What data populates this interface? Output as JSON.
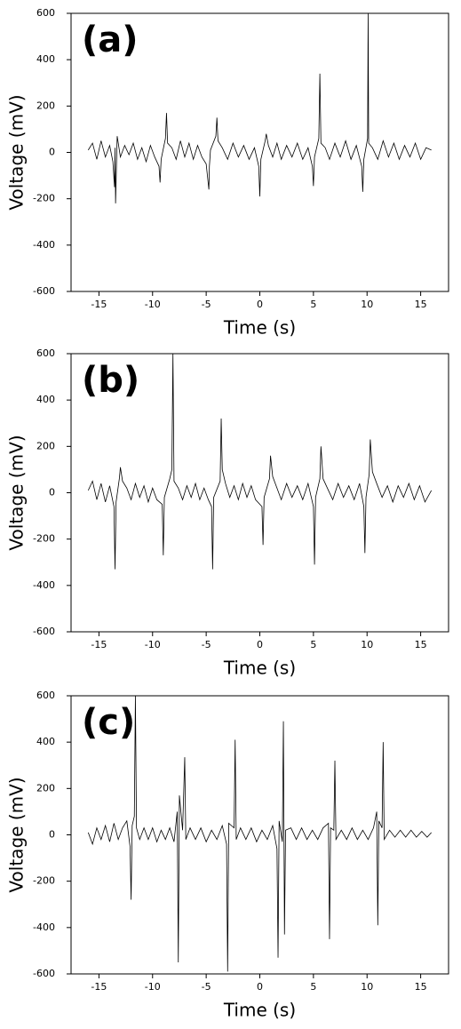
{
  "chart_data": [
    {
      "type": "line",
      "label": "(a)",
      "x_label": "Time (s)",
      "y_label": "Voltage (mV)",
      "x": [
        -16,
        -15.6,
        -15.2,
        -14.8,
        -14.4,
        -14.0,
        -13.7,
        -13.55,
        -13.5,
        -13.45,
        -13.3,
        -13.2,
        -13.0,
        -12.6,
        -12.2,
        -11.8,
        -11.4,
        -11.0,
        -10.6,
        -10.2,
        -9.8,
        -9.4,
        -9.3,
        -9.2,
        -8.8,
        -8.7,
        -8.6,
        -8.2,
        -7.8,
        -7.4,
        -7.0,
        -6.6,
        -6.2,
        -5.8,
        -5.4,
        -5.0,
        -4.75,
        -4.7,
        -4.6,
        -4.1,
        -4.0,
        -3.9,
        -3.5,
        -3.0,
        -2.5,
        -2.0,
        -1.5,
        -1.0,
        -0.5,
        -0.1,
        0.0,
        0.1,
        0.5,
        0.6,
        0.8,
        1.2,
        1.6,
        2.0,
        2.5,
        3.0,
        3.5,
        4.0,
        4.5,
        4.9,
        5.0,
        5.1,
        5.5,
        5.6,
        5.7,
        6.1,
        6.5,
        7.0,
        7.5,
        8.0,
        8.5,
        9.0,
        9.5,
        9.6,
        9.7,
        10.05,
        10.1,
        10.15,
        10.5,
        11.0,
        11.5,
        12.0,
        12.5,
        13.0,
        13.5,
        14.0,
        14.5,
        15.0,
        15.5,
        16.0
      ],
      "series": [
        {
          "color": "#000000",
          "values": [
            10,
            40,
            -30,
            50,
            -20,
            30,
            -40,
            -150,
            20,
            -220,
            70,
            40,
            -20,
            30,
            -10,
            40,
            -30,
            20,
            -40,
            30,
            -20,
            -60,
            -130,
            -30,
            60,
            170,
            40,
            20,
            -30,
            50,
            -20,
            40,
            -30,
            30,
            -20,
            -50,
            -160,
            -60,
            10,
            70,
            150,
            50,
            20,
            -30,
            40,
            -20,
            30,
            -30,
            20,
            -60,
            -190,
            -30,
            50,
            80,
            30,
            -20,
            40,
            -30,
            30,
            -20,
            40,
            -30,
            20,
            -60,
            -145,
            -20,
            60,
            340,
            40,
            20,
            -30,
            40,
            -20,
            50,
            -30,
            30,
            -60,
            -170,
            -30,
            60,
            600,
            40,
            20,
            -30,
            50,
            -20,
            40,
            -30,
            30,
            -20,
            40,
            -30,
            20,
            10
          ]
        }
      ],
      "xlim": [
        -17.6,
        17.6
      ],
      "ylim": [
        -600,
        600
      ],
      "xticks": [
        -15,
        -10,
        -5,
        0,
        5,
        10,
        15
      ],
      "yticks": [
        -600,
        -400,
        -200,
        0,
        200,
        400,
        600
      ]
    },
    {
      "type": "line",
      "label": "(b)",
      "x_label": "Time (s)",
      "y_label": "Voltage (mV)",
      "x": [
        -16,
        -15.6,
        -15.2,
        -14.8,
        -14.4,
        -14.0,
        -13.6,
        -13.5,
        -13.4,
        -13.1,
        -13.0,
        -12.8,
        -12.4,
        -12.0,
        -11.6,
        -11.2,
        -10.8,
        -10.4,
        -10.0,
        -9.6,
        -9.1,
        -9.0,
        -8.9,
        -8.4,
        -8.2,
        -8.1,
        -8.0,
        -7.6,
        -7.2,
        -6.8,
        -6.4,
        -6.0,
        -5.6,
        -5.2,
        -4.8,
        -4.5,
        -4.4,
        -4.3,
        -3.7,
        -3.6,
        -3.5,
        -3.2,
        -2.8,
        -2.4,
        -2.0,
        -1.6,
        -1.2,
        -0.8,
        -0.4,
        0.2,
        0.3,
        0.4,
        0.9,
        1.0,
        1.2,
        1.6,
        2.0,
        2.5,
        3.0,
        3.5,
        4.0,
        4.5,
        5.0,
        5.1,
        5.2,
        5.6,
        5.7,
        5.9,
        6.3,
        6.8,
        7.3,
        7.8,
        8.3,
        8.8,
        9.3,
        9.7,
        9.8,
        9.9,
        10.2,
        10.3,
        10.5,
        10.9,
        11.4,
        11.9,
        12.4,
        12.9,
        13.4,
        13.9,
        14.4,
        14.9,
        15.4,
        16.0
      ],
      "series": [
        {
          "color": "#000000",
          "values": [
            10,
            50,
            -30,
            40,
            -40,
            30,
            -60,
            -330,
            -40,
            60,
            110,
            50,
            20,
            -30,
            40,
            -20,
            30,
            -40,
            20,
            -30,
            -50,
            -270,
            -20,
            60,
            100,
            600,
            50,
            20,
            -30,
            30,
            -20,
            40,
            -30,
            20,
            -30,
            -60,
            -330,
            -20,
            50,
            320,
            100,
            40,
            -20,
            30,
            -30,
            40,
            -20,
            30,
            -30,
            -60,
            -225,
            -20,
            60,
            160,
            70,
            20,
            -30,
            40,
            -20,
            30,
            -30,
            40,
            -60,
            -310,
            -20,
            60,
            200,
            60,
            20,
            -30,
            40,
            -20,
            30,
            -30,
            40,
            -60,
            -260,
            -20,
            80,
            230,
            90,
            40,
            -20,
            30,
            -40,
            30,
            -20,
            40,
            -30,
            30,
            -40,
            10
          ]
        }
      ],
      "xlim": [
        -17.6,
        17.6
      ],
      "ylim": [
        -600,
        600
      ],
      "xticks": [
        -15,
        -10,
        -5,
        0,
        5,
        10,
        15
      ],
      "yticks": [
        -600,
        -400,
        -200,
        0,
        200,
        400,
        600
      ]
    },
    {
      "type": "line",
      "label": "(c)",
      "x_label": "Time (s)",
      "y_label": "Voltage (mV)",
      "x": [
        -16,
        -15.6,
        -15.2,
        -14.8,
        -14.4,
        -14.0,
        -13.6,
        -13.2,
        -12.8,
        -12.4,
        -12.1,
        -12.0,
        -11.9,
        -11.7,
        -11.6,
        -11.5,
        -11.2,
        -10.8,
        -10.4,
        -10.0,
        -9.6,
        -9.2,
        -8.8,
        -8.4,
        -8.0,
        -7.7,
        -7.6,
        -7.5,
        -7.2,
        -7.0,
        -6.9,
        -6.5,
        -6.0,
        -5.5,
        -5.0,
        -4.5,
        -4.0,
        -3.5,
        -3.1,
        -3.0,
        -2.9,
        -2.4,
        -2.3,
        -2.2,
        -1.8,
        -1.3,
        -0.8,
        -0.3,
        0.2,
        0.7,
        1.2,
        1.6,
        1.7,
        1.8,
        2.1,
        2.2,
        2.3,
        2.4,
        2.9,
        3.4,
        3.9,
        4.4,
        4.9,
        5.4,
        5.9,
        6.4,
        6.5,
        6.6,
        6.9,
        7.0,
        7.1,
        7.6,
        8.1,
        8.6,
        9.1,
        9.6,
        10.1,
        10.6,
        10.9,
        11.0,
        11.1,
        11.4,
        11.5,
        11.6,
        12.1,
        12.6,
        13.1,
        13.6,
        14.1,
        14.6,
        15.1,
        15.6,
        16.0
      ],
      "series": [
        {
          "color": "#000000",
          "values": [
            10,
            -40,
            30,
            -20,
            40,
            -30,
            50,
            -20,
            30,
            60,
            -50,
            -280,
            40,
            80,
            600,
            30,
            -20,
            30,
            -20,
            30,
            -30,
            20,
            -20,
            30,
            -30,
            100,
            -550,
            170,
            20,
            335,
            -20,
            30,
            -20,
            30,
            -30,
            20,
            -20,
            40,
            -40,
            -590,
            50,
            30,
            410,
            -20,
            30,
            -20,
            30,
            -30,
            20,
            -20,
            40,
            -60,
            -530,
            60,
            -30,
            490,
            -430,
            20,
            30,
            -20,
            30,
            -20,
            20,
            -20,
            30,
            50,
            -450,
            30,
            20,
            320,
            -20,
            20,
            -20,
            30,
            -20,
            20,
            -20,
            30,
            100,
            -390,
            60,
            30,
            400,
            -20,
            20,
            -10,
            20,
            -10,
            20,
            -10,
            15,
            -10,
            10
          ]
        }
      ],
      "xlim": [
        -17.6,
        17.6
      ],
      "ylim": [
        -600,
        600
      ],
      "xticks": [
        -15,
        -10,
        -5,
        0,
        5,
        10,
        15
      ],
      "yticks": [
        -600,
        -400,
        -200,
        0,
        200,
        400,
        600
      ]
    }
  ]
}
